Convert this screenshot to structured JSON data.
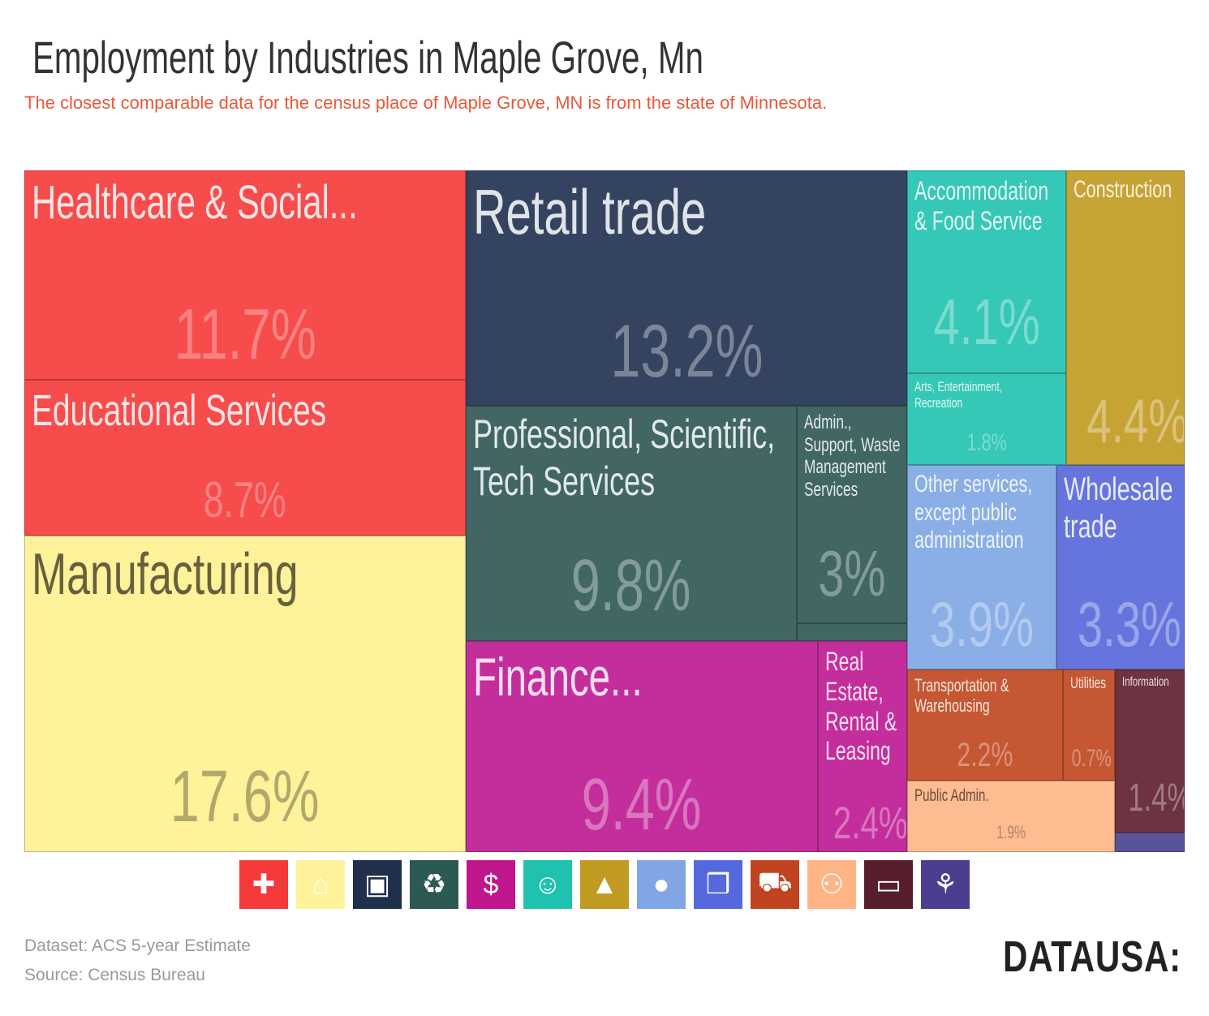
{
  "chart_data": {
    "type": "treemap",
    "title": "Employment by Industries in Maple Grove, Mn",
    "subtitle": "The closest comparable data for the census place of Maple Grove, MN is from the state of Minnesota.",
    "tiles": [
      {
        "label": "Healthcare & Social...",
        "value": "11.7%",
        "color": "#F64C4C"
      },
      {
        "label": "Educational Services",
        "value": "8.7%",
        "color": "#F64C4C"
      },
      {
        "label": "Manufacturing",
        "value": "17.6%",
        "color": "#FEF29A"
      },
      {
        "label": "Retail trade",
        "value": "13.2%",
        "color": "#344460"
      },
      {
        "label": "Professional, Scientific,\nTech Services",
        "value": "9.8%",
        "color": "#416663"
      },
      {
        "label": "Admin.,\nSupport, Waste\nManagement\nServices",
        "value": "3%",
        "color": "#416663"
      },
      {
        "label": "",
        "value": "",
        "color": "#416663"
      },
      {
        "label": "Finance...",
        "value": "9.4%",
        "color": "#C42E9C"
      },
      {
        "label": "Real\nEstate,\nRental &\nLeasing",
        "value": "2.4%",
        "color": "#C42E9C"
      },
      {
        "label": "Accommodation\n& Food Service",
        "value": "4.1%",
        "color": "#35C8B6"
      },
      {
        "label": "Arts, Entertainment,\nRecreation",
        "value": "1.8%",
        "color": "#35C8B6"
      },
      {
        "label": "Construction",
        "value": "4.4%",
        "color": "#C6A335"
      },
      {
        "label": "Other services,\nexcept public\nadministration",
        "value": "3.9%",
        "color": "#8AAEE6"
      },
      {
        "label": "Wholesale\ntrade",
        "value": "3.3%",
        "color": "#6675DE"
      },
      {
        "label": "Transportation &\nWarehousing",
        "value": "2.2%",
        "color": "#C65733"
      },
      {
        "label": "Utilities",
        "value": "0.7%",
        "color": "#C65733"
      },
      {
        "label": "Public Admin.",
        "value": "1.9%",
        "color": "#FFBC91"
      },
      {
        "label": "Information",
        "value": "1.4%",
        "color": "#6E3340"
      },
      {
        "label": "",
        "value": "",
        "color": "#5B5398"
      }
    ]
  },
  "legend_icons": [
    {
      "icon": "medical-cross-icon",
      "color": "#F53A3A"
    },
    {
      "icon": "factory-icon",
      "color": "#FEF29A"
    },
    {
      "icon": "storefront-icon",
      "color": "#1F2F4C"
    },
    {
      "icon": "recycle-icon",
      "color": "#2D5953"
    },
    {
      "icon": "house-dollar-icon",
      "color": "#BF168E"
    },
    {
      "icon": "theater-masks-icon",
      "color": "#1FC2AE"
    },
    {
      "icon": "traffic-cone-icon",
      "color": "#C09A21"
    },
    {
      "icon": "person-icon",
      "color": "#82A6E5"
    },
    {
      "icon": "boxes-icon",
      "color": "#5668DD"
    },
    {
      "icon": "truck-icon",
      "color": "#C0441F"
    },
    {
      "icon": "people-icon",
      "color": "#FFB485"
    },
    {
      "icon": "computer-icon",
      "color": "#561E2A"
    },
    {
      "icon": "wheat-icon",
      "color": "#4A3F8F"
    }
  ],
  "footer": {
    "dataset": "Dataset: ACS 5-year Estimate",
    "source": "Source: Census Bureau",
    "logo": "DATAUSA:"
  }
}
